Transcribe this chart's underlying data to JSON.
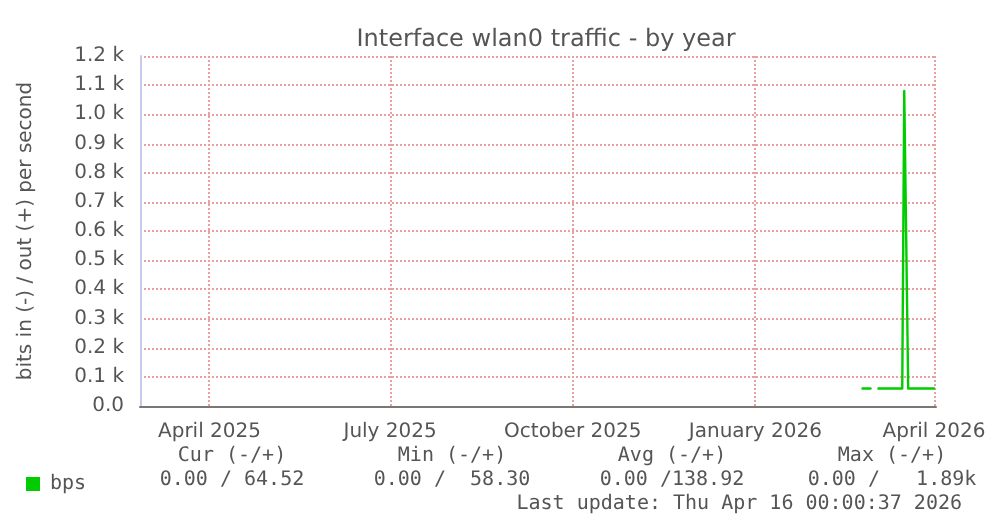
{
  "chart_data": {
    "type": "line",
    "title": "Interface wlan0 traffic - by year",
    "ylabel": "bits in (-) / out (+) per second",
    "series": [
      {
        "name": "bps",
        "color": "#00cc00",
        "x": [
          "2026-03-18",
          "2026-03-30",
          "2026-03-31",
          "2026-04-02",
          "2026-04-15"
        ],
        "values": [
          60,
          60,
          1080,
          60,
          60
        ]
      },
      {
        "color": "#00cc00",
        "x": [
          "2026-03-10",
          "2026-03-12",
          "2026-03-14"
        ],
        "values": [
          60,
          60,
          60
        ]
      }
    ],
    "xlim": [
      "2025-03-11",
      "2026-04-16"
    ],
    "xticks": [
      {
        "value": "2025-04-15",
        "label": "April 2025"
      },
      {
        "value": "2025-07-15",
        "label": "July 2025"
      },
      {
        "value": "2025-10-15",
        "label": "October 2025"
      },
      {
        "value": "2026-01-15",
        "label": "January 2026"
      },
      {
        "value": "2026-04-15",
        "label": "April 2026"
      }
    ],
    "ylim": [
      0,
      1200
    ],
    "yticks": [
      {
        "value": 0,
        "label": "0.0"
      },
      {
        "value": 100,
        "label": "0.1 k"
      },
      {
        "value": 200,
        "label": "0.2 k"
      },
      {
        "value": 300,
        "label": "0.3 k"
      },
      {
        "value": 400,
        "label": "0.4 k"
      },
      {
        "value": 500,
        "label": "0.5 k"
      },
      {
        "value": 600,
        "label": "0.6 k"
      },
      {
        "value": 700,
        "label": "0.7 k"
      },
      {
        "value": 800,
        "label": "0.8 k"
      },
      {
        "value": 900,
        "label": "0.9 k"
      },
      {
        "value": 1000,
        "label": "1.0 k"
      },
      {
        "value": 1100,
        "label": "1.1 k"
      },
      {
        "value": 1200,
        "label": "1.2 k"
      }
    ],
    "grid": true,
    "legend": "bottom left",
    "marker": "none",
    "line_style": "solid",
    "annotations": [
      "Cur (-/+)",
      "Min (-/+)",
      "Avg (-/+)",
      "Max (-/+)",
      "0.00 / 64.52",
      "0.00 /  58.30",
      "0.00 /138.92",
      "0.00 /   1.89k",
      "Last update: Thu Apr 16 00:00:37 2026"
    ]
  }
}
